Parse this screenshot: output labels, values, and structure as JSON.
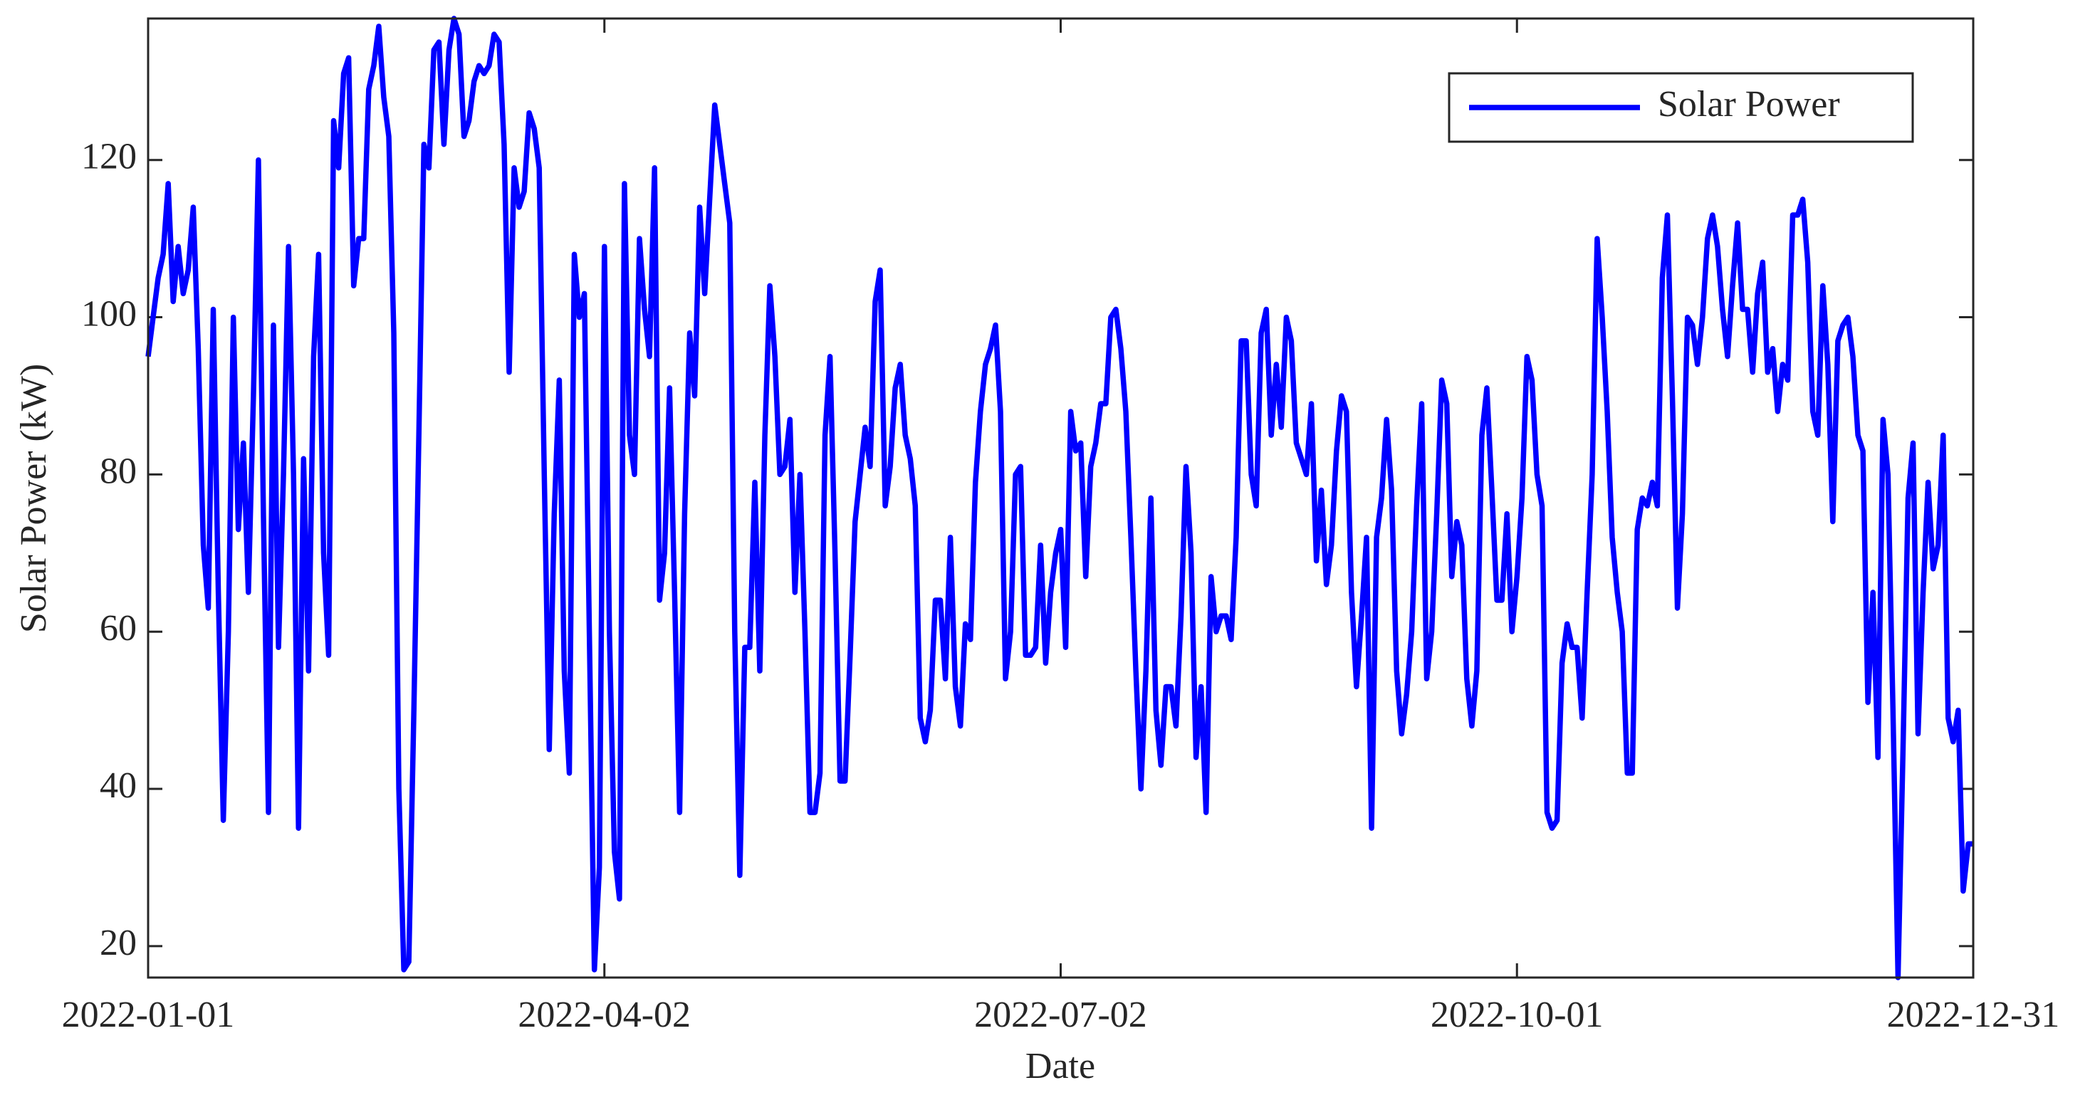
{
  "chart_data": {
    "type": "line",
    "xlabel": "Date",
    "ylabel": "Solar Power (kW)",
    "xlim": [
      "2022-01-01",
      "2022-12-31"
    ],
    "xticks": [
      "2022-01-01",
      "2022-04-02",
      "2022-07-02",
      "2022-10-01",
      "2022-12-31"
    ],
    "ylim": [
      16,
      138
    ],
    "yticks": [
      20,
      40,
      60,
      80,
      100,
      120
    ],
    "legend": "upper right",
    "x": [
      "2022-01-01",
      "2022-01-02",
      "2022-01-03",
      "2022-01-04",
      "2022-01-05",
      "2022-01-06",
      "2022-01-07",
      "2022-01-08",
      "2022-01-09",
      "2022-01-10",
      "2022-01-11",
      "2022-01-12",
      "2022-01-13",
      "2022-01-14",
      "2022-01-15",
      "2022-01-16",
      "2022-01-17",
      "2022-01-18",
      "2022-01-19",
      "2022-01-20",
      "2022-01-21",
      "2022-01-22",
      "2022-01-23",
      "2022-01-24",
      "2022-01-25",
      "2022-01-26",
      "2022-01-27",
      "2022-01-28",
      "2022-01-29",
      "2022-01-30",
      "2022-01-31",
      "2022-02-01",
      "2022-02-02",
      "2022-02-03",
      "2022-02-04",
      "2022-02-05",
      "2022-02-06",
      "2022-02-07",
      "2022-02-08",
      "2022-02-09",
      "2022-02-10",
      "2022-02-11",
      "2022-02-12",
      "2022-02-13",
      "2022-02-14",
      "2022-02-15",
      "2022-02-16",
      "2022-02-17",
      "2022-02-18",
      "2022-02-19",
      "2022-02-20",
      "2022-02-21",
      "2022-02-22",
      "2022-02-23",
      "2022-02-24",
      "2022-02-25",
      "2022-02-26",
      "2022-02-27",
      "2022-02-28",
      "2022-03-01",
      "2022-03-02",
      "2022-03-03",
      "2022-03-04",
      "2022-03-05",
      "2022-03-06",
      "2022-03-07",
      "2022-03-08",
      "2022-03-09",
      "2022-03-10",
      "2022-03-11",
      "2022-03-12",
      "2022-03-13",
      "2022-03-14",
      "2022-03-15",
      "2022-03-16",
      "2022-03-17",
      "2022-03-18",
      "2022-03-19",
      "2022-03-20",
      "2022-03-21",
      "2022-03-22",
      "2022-03-23",
      "2022-03-24",
      "2022-03-25",
      "2022-03-26",
      "2022-03-27",
      "2022-03-28",
      "2022-03-29",
      "2022-03-30",
      "2022-03-31",
      "2022-04-01",
      "2022-04-02",
      "2022-04-03",
      "2022-04-04",
      "2022-04-05",
      "2022-04-06",
      "2022-04-07",
      "2022-04-08",
      "2022-04-09",
      "2022-04-10",
      "2022-04-11",
      "2022-04-12",
      "2022-04-13",
      "2022-04-14",
      "2022-04-15",
      "2022-04-16",
      "2022-04-17",
      "2022-04-18",
      "2022-04-19",
      "2022-04-20",
      "2022-04-21",
      "2022-04-22",
      "2022-04-23",
      "2022-04-24",
      "2022-04-25",
      "2022-04-26",
      "2022-04-27",
      "2022-04-28",
      "2022-04-29",
      "2022-04-30",
      "2022-05-01",
      "2022-05-02",
      "2022-05-03",
      "2022-05-04",
      "2022-05-05",
      "2022-05-06",
      "2022-05-07",
      "2022-05-08",
      "2022-05-09",
      "2022-05-10",
      "2022-05-11",
      "2022-05-12",
      "2022-05-13",
      "2022-05-14",
      "2022-05-15",
      "2022-05-16",
      "2022-05-17",
      "2022-05-18",
      "2022-05-19",
      "2022-05-20",
      "2022-05-21",
      "2022-05-22",
      "2022-05-23",
      "2022-05-24",
      "2022-05-25",
      "2022-05-26",
      "2022-05-27",
      "2022-05-28",
      "2022-05-29",
      "2022-05-30",
      "2022-05-31",
      "2022-06-01",
      "2022-06-02",
      "2022-06-03",
      "2022-06-04",
      "2022-06-05",
      "2022-06-06",
      "2022-06-07",
      "2022-06-08",
      "2022-06-09",
      "2022-06-10",
      "2022-06-11",
      "2022-06-12",
      "2022-06-13",
      "2022-06-14",
      "2022-06-15",
      "2022-06-16",
      "2022-06-17",
      "2022-06-18",
      "2022-06-19",
      "2022-06-20",
      "2022-06-21",
      "2022-06-22",
      "2022-06-23",
      "2022-06-24",
      "2022-06-25",
      "2022-06-26",
      "2022-06-27",
      "2022-06-28",
      "2022-06-29",
      "2022-06-30",
      "2022-07-01",
      "2022-07-02",
      "2022-07-03",
      "2022-07-04",
      "2022-07-05",
      "2022-07-06",
      "2022-07-07",
      "2022-07-08",
      "2022-07-09",
      "2022-07-10",
      "2022-07-11",
      "2022-07-12",
      "2022-07-13",
      "2022-07-14",
      "2022-07-15",
      "2022-07-16",
      "2022-07-17",
      "2022-07-18",
      "2022-07-19",
      "2022-07-20",
      "2022-07-21",
      "2022-07-22",
      "2022-07-23",
      "2022-07-24",
      "2022-07-25",
      "2022-07-26",
      "2022-07-27",
      "2022-07-28",
      "2022-07-29",
      "2022-07-30",
      "2022-07-31",
      "2022-08-01",
      "2022-08-02",
      "2022-08-03",
      "2022-08-04",
      "2022-08-05",
      "2022-08-06",
      "2022-08-07",
      "2022-08-08",
      "2022-08-09",
      "2022-08-10",
      "2022-08-11",
      "2022-08-12",
      "2022-08-13",
      "2022-08-14",
      "2022-08-15",
      "2022-08-16",
      "2022-08-17",
      "2022-08-18",
      "2022-08-19",
      "2022-08-20",
      "2022-08-21",
      "2022-08-22",
      "2022-08-23",
      "2022-08-24",
      "2022-08-25",
      "2022-08-26",
      "2022-08-27",
      "2022-08-28",
      "2022-08-29",
      "2022-08-30",
      "2022-08-31",
      "2022-09-01",
      "2022-09-02",
      "2022-09-03",
      "2022-09-04",
      "2022-09-05",
      "2022-09-06",
      "2022-09-07",
      "2022-09-08",
      "2022-09-09",
      "2022-09-10",
      "2022-09-11",
      "2022-09-12",
      "2022-09-13",
      "2022-09-14",
      "2022-09-15",
      "2022-09-16",
      "2022-09-17",
      "2022-09-18",
      "2022-09-19",
      "2022-09-20",
      "2022-09-21",
      "2022-09-22",
      "2022-09-23",
      "2022-09-24",
      "2022-09-25",
      "2022-09-26",
      "2022-09-27",
      "2022-09-28",
      "2022-09-29",
      "2022-09-30",
      "2022-10-01",
      "2022-10-02",
      "2022-10-03",
      "2022-10-04",
      "2022-10-05",
      "2022-10-06",
      "2022-10-07",
      "2022-10-08",
      "2022-10-09",
      "2022-10-10",
      "2022-10-11",
      "2022-10-12",
      "2022-10-13",
      "2022-10-14",
      "2022-10-15",
      "2022-10-16",
      "2022-10-17",
      "2022-10-18",
      "2022-10-19",
      "2022-10-20",
      "2022-10-21",
      "2022-10-22",
      "2022-10-23",
      "2022-10-24",
      "2022-10-25",
      "2022-10-26",
      "2022-10-27",
      "2022-10-28",
      "2022-10-29",
      "2022-10-30",
      "2022-10-31",
      "2022-11-01",
      "2022-11-02",
      "2022-11-03",
      "2022-11-04",
      "2022-11-05",
      "2022-11-06",
      "2022-11-07",
      "2022-11-08",
      "2022-11-09",
      "2022-11-10",
      "2022-11-11",
      "2022-11-12",
      "2022-11-13",
      "2022-11-14",
      "2022-11-15",
      "2022-11-16",
      "2022-11-17",
      "2022-11-18",
      "2022-11-19",
      "2022-11-20",
      "2022-11-21",
      "2022-11-22",
      "2022-11-23",
      "2022-11-24",
      "2022-11-25",
      "2022-11-26",
      "2022-11-27",
      "2022-11-28",
      "2022-11-29",
      "2022-11-30",
      "2022-12-01",
      "2022-12-02",
      "2022-12-03",
      "2022-12-04",
      "2022-12-05",
      "2022-12-06",
      "2022-12-07",
      "2022-12-08",
      "2022-12-09",
      "2022-12-10",
      "2022-12-11",
      "2022-12-12",
      "2022-12-13",
      "2022-12-14",
      "2022-12-15",
      "2022-12-16",
      "2022-12-17",
      "2022-12-18",
      "2022-12-19",
      "2022-12-20",
      "2022-12-21",
      "2022-12-22",
      "2022-12-23",
      "2022-12-24",
      "2022-12-25",
      "2022-12-26",
      "2022-12-27",
      "2022-12-28",
      "2022-12-29",
      "2022-12-30",
      "2022-12-31"
    ],
    "series": [
      {
        "name": "Solar Power",
        "color": "#0000ff",
        "values": [
          95,
          100,
          105,
          108,
          117,
          102,
          109,
          103,
          106,
          114,
          96,
          71,
          63,
          101,
          65,
          36,
          60,
          100,
          73,
          84,
          65,
          90,
          120,
          75,
          37,
          99,
          58,
          80,
          109,
          80,
          35,
          82,
          55,
          95,
          108,
          70,
          57,
          125,
          119,
          131,
          133,
          104,
          110,
          110,
          129,
          132,
          137,
          128,
          123,
          98,
          40,
          17,
          18,
          50,
          85,
          122,
          119,
          134,
          135,
          122,
          134,
          138,
          136,
          123,
          125,
          130,
          132,
          131,
          132,
          136,
          135,
          122,
          93,
          119,
          114,
          116,
          126,
          124,
          119,
          80,
          45,
          75,
          92,
          55,
          42,
          108,
          100,
          103,
          60,
          17,
          30,
          109,
          60,
          32,
          26,
          117,
          85,
          80,
          110,
          101,
          95,
          119,
          64,
          70,
          91,
          65,
          37,
          75,
          98,
          90,
          114,
          103,
          115,
          127,
          122,
          117,
          112,
          60,
          29,
          58,
          58,
          79,
          55,
          85,
          104,
          95,
          80,
          81,
          87,
          65,
          80,
          60,
          37,
          37,
          42,
          85,
          95,
          70,
          41,
          41,
          57,
          74,
          80,
          86,
          81,
          102,
          106,
          76,
          81,
          91,
          94,
          85,
          82,
          76,
          49,
          46,
          50,
          64,
          64,
          54,
          72,
          53,
          48,
          61,
          59,
          79,
          88,
          94,
          96,
          99,
          88,
          54,
          60,
          80,
          81,
          57,
          57,
          58,
          71,
          56,
          65,
          70,
          73,
          58,
          88,
          83,
          84,
          67,
          81,
          84,
          89,
          89,
          100,
          101,
          96,
          88,
          72,
          55,
          40,
          55,
          77,
          50,
          43,
          53,
          53,
          48,
          62,
          81,
          70,
          44,
          53,
          37,
          67,
          60,
          62,
          62,
          59,
          72,
          97,
          97,
          80,
          76,
          98,
          101,
          85,
          94,
          86,
          100,
          97,
          84,
          82,
          80,
          89,
          69,
          78,
          66,
          71,
          83,
          90,
          88,
          65,
          53,
          62,
          72,
          35,
          72,
          77,
          87,
          78,
          55,
          47,
          52,
          60,
          76,
          89,
          54,
          60,
          75,
          92,
          89,
          67,
          74,
          71,
          54,
          48,
          55,
          85,
          91,
          78,
          64,
          64,
          75,
          60,
          67,
          77,
          95,
          92,
          80,
          76,
          37,
          35,
          36,
          56,
          61,
          58,
          58,
          49,
          65,
          80,
          110,
          100,
          88,
          72,
          65,
          60,
          42,
          42,
          73,
          77,
          76,
          79,
          76,
          105,
          113,
          90,
          63,
          75,
          100,
          99,
          94,
          100,
          110,
          113,
          109,
          101,
          95,
          104,
          112,
          101,
          101,
          93,
          103,
          107,
          93,
          96,
          88,
          94,
          92,
          113,
          113,
          115,
          107,
          88,
          85,
          104,
          94,
          74,
          97,
          99,
          100,
          95,
          85,
          83,
          51,
          65,
          44,
          87,
          80,
          50,
          16,
          45,
          77,
          84,
          47,
          65,
          79,
          68,
          71,
          85,
          49,
          46,
          50,
          27,
          33,
          33
        ]
      }
    ]
  }
}
